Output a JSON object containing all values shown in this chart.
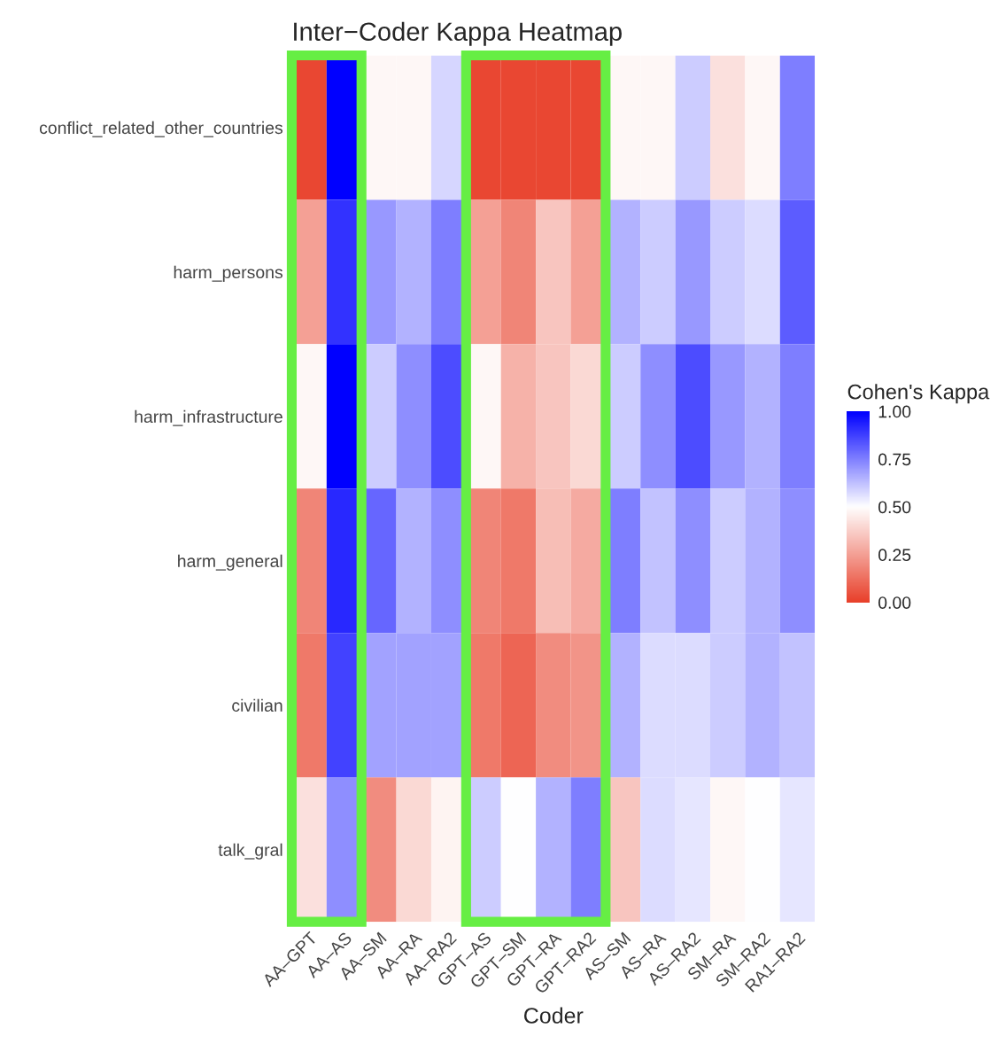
{
  "chart_data": {
    "type": "heatmap",
    "title": "Inter−Coder Kappa Heatmap",
    "xlabel": "Coder",
    "clabel": "Cohen's Kappa",
    "categories": [
      "AA–GPT",
      "AA–AS",
      "AA–SM",
      "AA–RA",
      "AA–RA2",
      "GPT–AS",
      "GPT–SM",
      "GPT–RA",
      "GPT–RA2",
      "AS–SM",
      "AS–RA",
      "AS–RA2",
      "SM–RA",
      "SM–RA2",
      "RA1–RA2"
    ],
    "y_categories": [
      "conflict_related_other_countries",
      "harm_persons",
      "harm_infrastructure",
      "harm_general",
      "civilian",
      "talk_gral"
    ],
    "cells": [
      [
        0.02,
        1.0,
        0.48,
        0.48,
        0.58,
        0.02,
        0.02,
        0.02,
        0.02,
        0.48,
        0.48,
        0.6,
        0.42,
        0.48,
        0.75
      ],
      [
        0.25,
        0.9,
        0.7,
        0.65,
        0.75,
        0.25,
        0.18,
        0.35,
        0.25,
        0.65,
        0.6,
        0.7,
        0.6,
        0.57,
        0.82
      ],
      [
        0.48,
        1.0,
        0.6,
        0.72,
        0.85,
        0.48,
        0.3,
        0.35,
        0.4,
        0.6,
        0.72,
        0.85,
        0.7,
        0.65,
        0.75
      ],
      [
        0.18,
        0.92,
        0.8,
        0.65,
        0.72,
        0.18,
        0.15,
        0.33,
        0.28,
        0.75,
        0.62,
        0.72,
        0.6,
        0.65,
        0.72
      ],
      [
        0.15,
        0.87,
        0.68,
        0.68,
        0.68,
        0.15,
        0.1,
        0.2,
        0.22,
        0.65,
        0.57,
        0.57,
        0.6,
        0.65,
        0.62
      ],
      [
        0.42,
        0.72,
        0.2,
        0.4,
        0.47,
        0.6,
        0.5,
        0.65,
        0.75,
        0.35,
        0.57,
        0.55,
        0.48,
        0.5,
        0.55
      ]
    ],
    "clim": [
      0,
      1
    ],
    "cticks": [
      {
        "value": 0,
        "label": "0.00"
      },
      {
        "value": 0.25,
        "label": "0.25"
      },
      {
        "value": 0.5,
        "label": "0.50"
      },
      {
        "value": 0.75,
        "label": "0.75"
      },
      {
        "value": 1,
        "label": "1.00"
      }
    ]
  }
}
